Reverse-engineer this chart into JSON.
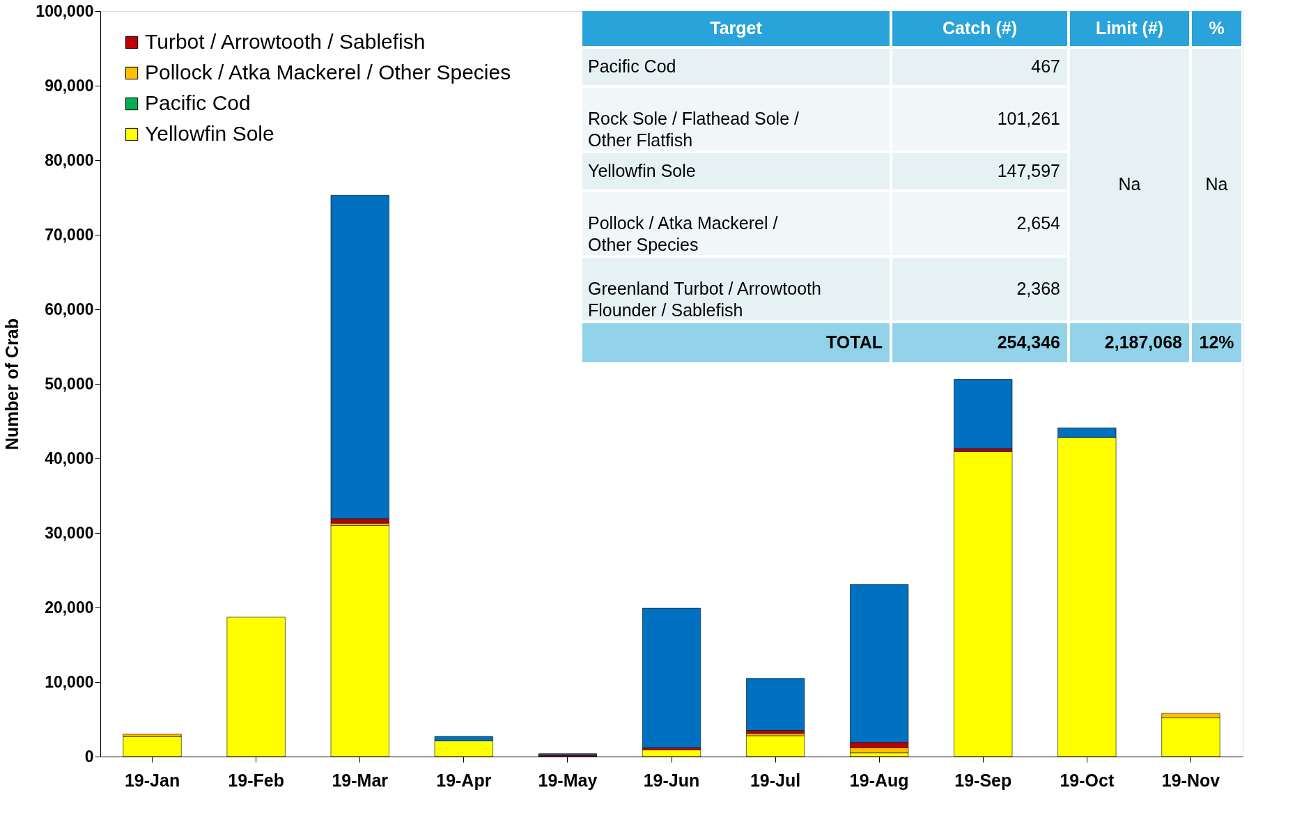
{
  "chart_data": {
    "type": "bar",
    "stacked": true,
    "ylabel": "Number of Crab",
    "categories": [
      "19-Jan",
      "19-Feb",
      "19-Mar",
      "19-Apr",
      "19-May",
      "19-Jun",
      "19-Jul",
      "19-Aug",
      "19-Sep",
      "19-Oct",
      "19-Nov"
    ],
    "series": [
      {
        "name": "Yellowfin Sole",
        "color": "#ffff00",
        "values": [
          2700,
          18700,
          31000,
          2100,
          null,
          900,
          2800,
          500,
          40900,
          42800,
          5200
        ]
      },
      {
        "name": "Pacific Cod",
        "color": "#00b050",
        "values": [
          null,
          null,
          null,
          null,
          null,
          null,
          null,
          null,
          null,
          null,
          null
        ]
      },
      {
        "name": "Pollock / Atka Mackerel / Other Species",
        "color": "#ffc000",
        "values": [
          300,
          null,
          300,
          null,
          null,
          null,
          300,
          700,
          null,
          null,
          600
        ]
      },
      {
        "name": "Turbot / Arrowtooth / Sablefish",
        "color": "#c00000",
        "values": [
          null,
          null,
          600,
          null,
          200,
          300,
          400,
          700,
          400,
          null,
          null
        ]
      },
      {
        "color": "#0070c0",
        "values": [
          null,
          null,
          43400,
          600,
          200,
          18700,
          7000,
          21200,
          9300,
          1300,
          null
        ]
      }
    ],
    "ylim": [
      0,
      100000
    ],
    "yticks": [
      0,
      {
        "value": 10000,
        "label": "10,000"
      },
      {
        "value": 20000,
        "label": "20,000"
      },
      {
        "value": 30000,
        "label": "30,000"
      },
      {
        "value": 40000,
        "label": "40,000"
      },
      {
        "value": 50000,
        "label": "50,000"
      },
      {
        "value": 60000,
        "label": "60,000"
      },
      {
        "value": 70000,
        "label": "70,000"
      },
      {
        "value": 80000,
        "label": "80,000"
      },
      {
        "value": 90000,
        "label": "90,000"
      },
      {
        "value": 100000,
        "label": "100,000"
      }
    ],
    "grid": false,
    "legend": "top left",
    "annotations": [
      "Target",
      "Catch (#)",
      "Limit (#)",
      "%",
      "Pacific Cod",
      "467",
      "Rock Sole / Flathead Sole / Other Flatfish",
      "101,261",
      "Yellowfin Sole",
      "147,597",
      "Pollock / Atka Mackerel / Other Species",
      "2,654",
      "Greenland Turbot / Arrowtooth Flounder / Sablefish",
      "2,368",
      "Na",
      "Na",
      "TOTAL",
      "254,346",
      "2,187,068",
      "12%"
    ]
  }
}
